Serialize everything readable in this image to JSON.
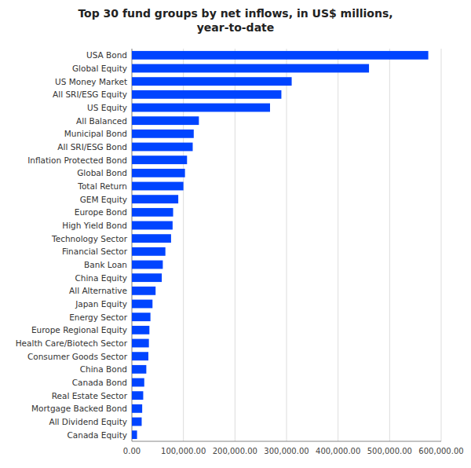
{
  "chart_data": {
    "type": "bar",
    "orientation": "horizontal",
    "title": "Top 30 fund groups by net inflows, in US$ millions,\nyear-to-date",
    "categories": [
      "USA Bond",
      "Global Equity",
      "US Money Market",
      "All SRI/ESG Equity",
      "US Equity",
      "All Balanced",
      "Municipal Bond",
      "All SRI/ESG Bond",
      "Inflation Protected Bond",
      "Global Bond",
      "Total Return",
      "GEM Equity",
      "Europe Bond",
      "High Yield Bond",
      "Technology Sector",
      "Financial Sector",
      "Bank Loan",
      "China Equity",
      "All Alternative",
      "Japan Equity",
      "Energy Sector",
      "Europe Regional Equity",
      "Health Care/Biotech Sector",
      "Consumer Goods Sector",
      "China Bond",
      "Canada Bond",
      "Real Estate Sector",
      "Mortgage Backed Bond",
      "All Dividend Equity",
      "Canada Equity"
    ],
    "values": [
      575000,
      460000,
      310000,
      290000,
      268000,
      130000,
      120000,
      118000,
      107000,
      103000,
      100000,
      90000,
      80000,
      79000,
      76000,
      65000,
      60000,
      58000,
      46000,
      40000,
      36000,
      34000,
      33000,
      32000,
      28000,
      24000,
      22000,
      20000,
      19000,
      10000
    ],
    "color": "#0044ff",
    "xlim": [
      0,
      600000
    ],
    "xticks": [
      {
        "value": 0,
        "label": "0.00"
      },
      {
        "value": 100000,
        "label": "100,000.00"
      },
      {
        "value": 200000,
        "label": "200,000.00"
      },
      {
        "value": 300000,
        "label": "300,000.00"
      },
      {
        "value": 400000,
        "label": "400,000.00"
      },
      {
        "value": 500000,
        "label": "500,000.00"
      },
      {
        "value": 600000,
        "label": "600,000.00"
      }
    ],
    "grid": true
  }
}
